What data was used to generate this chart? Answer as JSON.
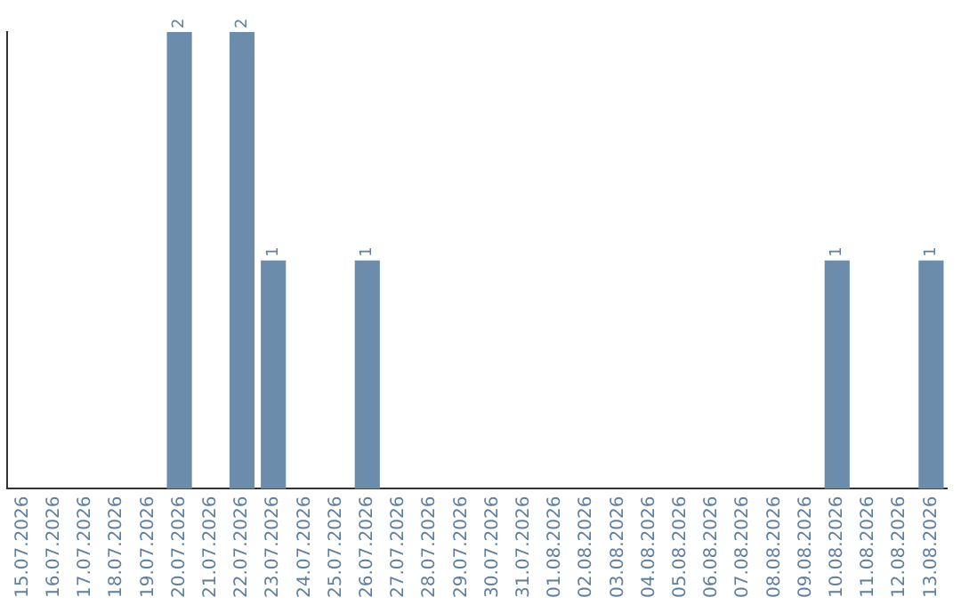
{
  "chart_data": {
    "type": "bar",
    "categories": [
      "15.07.2026",
      "16.07.2026",
      "17.07.2026",
      "18.07.2026",
      "19.07.2026",
      "20.07.2026",
      "21.07.2026",
      "22.07.2026",
      "23.07.2026",
      "24.07.2026",
      "25.07.2026",
      "26.07.2026",
      "27.07.2026",
      "28.07.2026",
      "29.07.2026",
      "30.07.2026",
      "31.07.2026",
      "01.08.2026",
      "02.08.2026",
      "03.08.2026",
      "04.08.2026",
      "05.08.2026",
      "06.08.2026",
      "07.08.2026",
      "08.08.2026",
      "09.08.2026",
      "10.08.2026",
      "11.08.2026",
      "12.08.2026",
      "13.08.2026"
    ],
    "values": [
      0,
      0,
      0,
      0,
      0,
      2,
      0,
      2,
      1,
      0,
      0,
      1,
      0,
      0,
      0,
      0,
      0,
      0,
      0,
      0,
      0,
      0,
      0,
      0,
      0,
      0,
      1,
      0,
      0,
      1
    ],
    "value_labels": [
      null,
      null,
      null,
      null,
      null,
      "2",
      null,
      "2",
      "1",
      null,
      null,
      "1",
      null,
      null,
      null,
      null,
      null,
      null,
      null,
      null,
      null,
      null,
      null,
      null,
      null,
      null,
      "1",
      null,
      null,
      "1"
    ],
    "color": "#6b8cab",
    "tick_labels": "x"
  }
}
